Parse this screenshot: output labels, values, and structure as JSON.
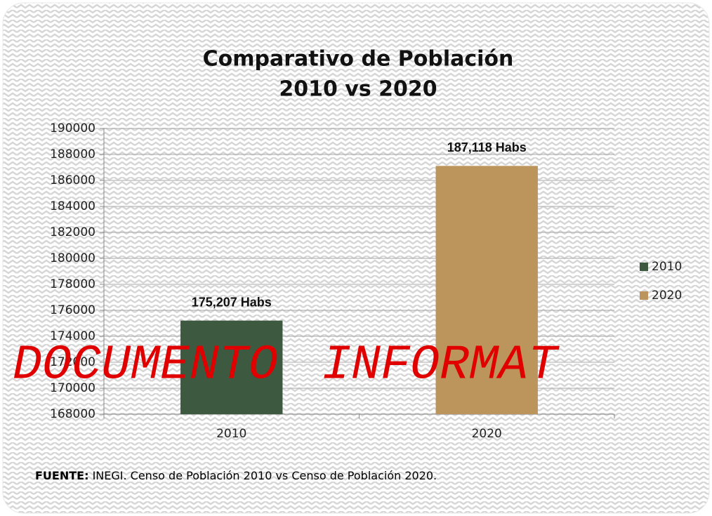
{
  "chart_data": {
    "type": "bar",
    "title": "Comparativo de Población",
    "subtitle": "2010 vs 2020",
    "categories": [
      "2010",
      "2020"
    ],
    "values": [
      175207,
      187118
    ],
    "value_labels": [
      "175,207 Habs",
      "187,118 Habs"
    ],
    "colors": [
      "#3d5a40",
      "#bc955c"
    ],
    "ylim": [
      168000,
      190000
    ],
    "yticks": [
      168000,
      170000,
      172000,
      174000,
      176000,
      178000,
      180000,
      182000,
      184000,
      186000,
      188000,
      190000
    ],
    "grid": true,
    "legend": "right",
    "watermark": "DOCUMENTO INFORMAT",
    "source_label": "FUENTE:",
    "source_text": "INEGI. Censo de Población 2010 vs Censo de Población 2020."
  }
}
